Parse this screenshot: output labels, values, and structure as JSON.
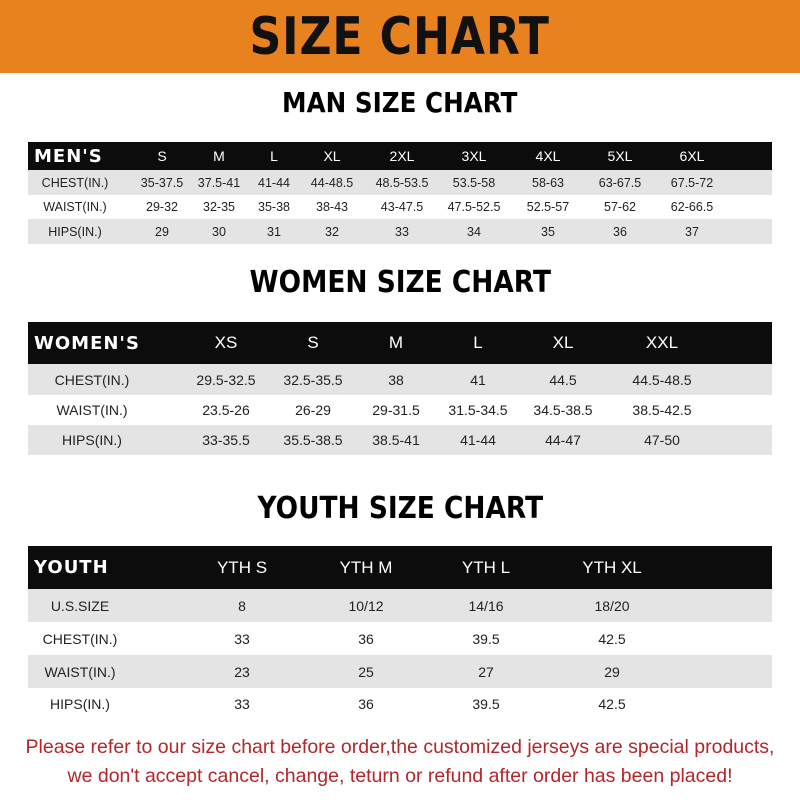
{
  "banner_title": "SIZE CHART",
  "men": {
    "title": "MAN SIZE CHART",
    "header": [
      "MEN'S",
      "S",
      "M",
      "L",
      "XL",
      "2XL",
      "3XL",
      "4XL",
      "5XL",
      "6XL"
    ],
    "rows": [
      [
        "CHEST(IN.)",
        "35-37.5",
        "37.5-41",
        "41-44",
        "44-48.5",
        "48.5-53.5",
        "53.5-58",
        "58-63",
        "63-67.5",
        "67.5-72"
      ],
      [
        "WAIST(IN.)",
        "29-32",
        "32-35",
        "35-38",
        "38-43",
        "43-47.5",
        "47.5-52.5",
        "52.5-57",
        "57-62",
        "62-66.5"
      ],
      [
        "HIPS(IN.)",
        "29",
        "30",
        "31",
        "32",
        "33",
        "34",
        "35",
        "36",
        "37"
      ]
    ]
  },
  "women": {
    "title": "WOMEN SIZE CHART",
    "header": [
      "WOMEN'S",
      "XS",
      "S",
      "M",
      "L",
      "XL",
      "XXL"
    ],
    "rows": [
      [
        "CHEST(IN.)",
        "29.5-32.5",
        "32.5-35.5",
        "38",
        "41",
        "44.5",
        "44.5-48.5"
      ],
      [
        "WAIST(IN.)",
        "23.5-26",
        "26-29",
        "29-31.5",
        "31.5-34.5",
        "34.5-38.5",
        "38.5-42.5"
      ],
      [
        "HIPS(IN.)",
        "33-35.5",
        "35.5-38.5",
        "38.5-41",
        "41-44",
        "44-47",
        "47-50"
      ]
    ]
  },
  "youth": {
    "title": "YOUTH SIZE CHART",
    "header": [
      "YOUTH",
      "YTH S",
      "YTH M",
      "YTH L",
      "YTH XL"
    ],
    "rows": [
      [
        "U.S.SIZE",
        "8",
        "10/12",
        "14/16",
        "18/20"
      ],
      [
        "CHEST(IN.)",
        "33",
        "36",
        "39.5",
        "42.5"
      ],
      [
        "WAIST(IN.)",
        "23",
        "25",
        "27",
        "29"
      ],
      [
        "HIPS(IN.)",
        "33",
        "36",
        "39.5",
        "42.5"
      ]
    ]
  },
  "notice": {
    "line1": "Please refer to our size chart before order,the customized jerseys are special products,",
    "line2": "we don't accept cancel, change, teturn or refund after order has been placed!"
  },
  "colors": {
    "banner": "#e8821e",
    "header_row": "#0c0c0c",
    "stripe": "#e4e4e4",
    "notice": "#b3262a"
  }
}
